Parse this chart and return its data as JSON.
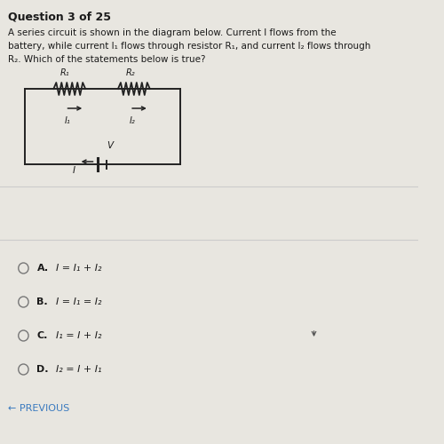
{
  "bg_color": "#e8e6e0",
  "title_text": "Question 3 of 25",
  "line1": "A series circuit is shown in the diagram below. Current I flows from the",
  "line2": "battery, while current I₁ flows through resistor R₁, and current I₂ flows through",
  "line3": "R₂. Which of the statements below is true?",
  "options": [
    [
      "A.",
      "I = I₁ + I₂"
    ],
    [
      "B.",
      "I = I₁ = I₂"
    ],
    [
      "C.",
      "I₁ = I + I₂"
    ],
    [
      "D.",
      "I₂ = I + I₁"
    ]
  ],
  "prev_text": "← PREVIOUS",
  "r1_label": "R₁",
  "r2_label": "R₂",
  "i1_label": "I₁",
  "i2_label": "I₂",
  "v_label": "V",
  "i_label": "I",
  "text_color": "#1a1a1a",
  "circuit_color": "#222222",
  "prev_color": "#3a7abf",
  "sep_color": "#cccccc"
}
